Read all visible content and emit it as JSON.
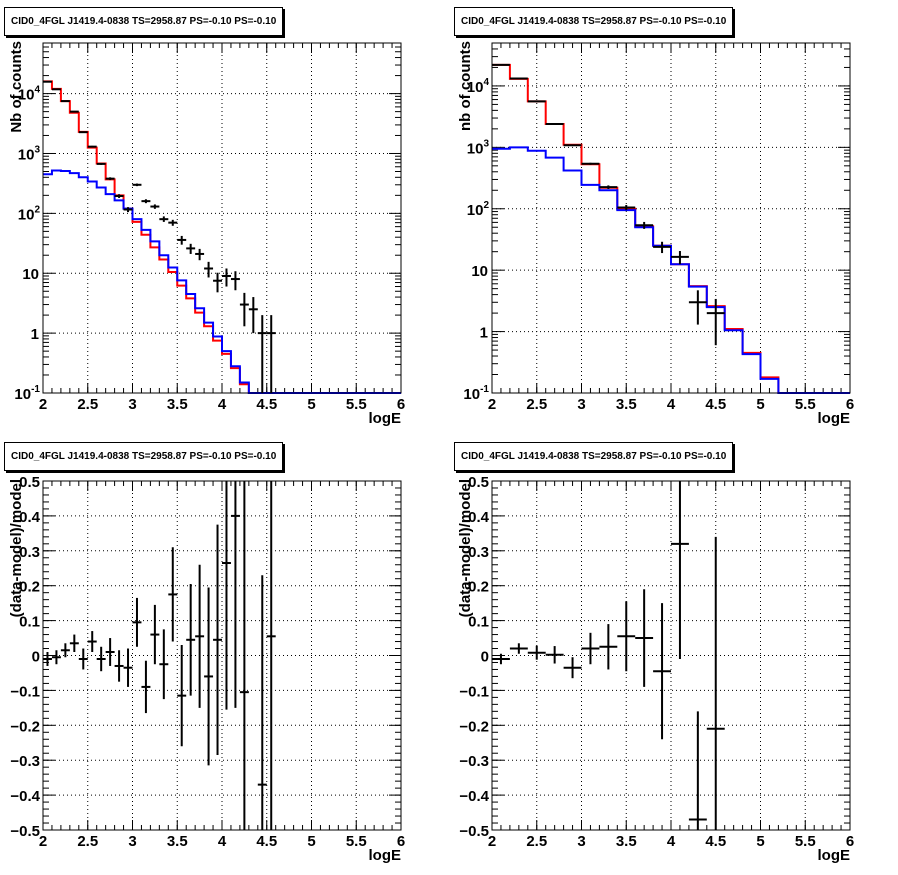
{
  "colors": {
    "data": "#000000",
    "total_model": "#ff0000",
    "source_model": "#0000ff",
    "grid": "#000000"
  },
  "chart_data": [
    {
      "type": "line",
      "title": "CID0_4FGL J1419.4-0838 TS=2958.87 PS=-0.10 PS=-0.10",
      "xlabel": "logE",
      "ylabel": "Nb of counts",
      "xlim": [
        2,
        6
      ],
      "ylim": [
        0.1,
        70000
      ],
      "yscale": "log",
      "grid": true,
      "x_ticks": [
        "2",
        "2.5",
        "3",
        "3.5",
        "4",
        "4.5",
        "5",
        "5.5",
        "6"
      ],
      "y_ticks": [
        "10^-1",
        "1",
        "10",
        "10^2",
        "10^3",
        "10^4"
      ],
      "bin_width": 0.1,
      "series": [
        {
          "values": [
            16000,
            12000,
            7500,
            4800,
            2300,
            1250,
            680,
            370,
            200,
            120,
            72,
            44,
            27,
            17,
            10.5,
            6.2,
            3.8,
            2.2,
            1.3,
            0.75,
            0.45,
            0.26,
            0.14,
            0.1,
            0.1,
            0.1,
            0.1,
            0.1,
            0.1,
            0.1,
            0.1,
            0.1,
            0.1,
            0.1,
            0.1,
            0.1,
            0.1,
            0.1,
            0.1,
            0.1
          ]
        },
        {
          "values": [
            450,
            520,
            510,
            470,
            400,
            340,
            270,
            210,
            165,
            120,
            80,
            53,
            34,
            20,
            12.5,
            7.6,
            4.5,
            2.6,
            1.5,
            0.88,
            0.5,
            0.28,
            0.15,
            0.1,
            0.1,
            0.1,
            0.1,
            0.1,
            0.1,
            0.1,
            0.1,
            0.1,
            0.1,
            0.1,
            0.1,
            0.1,
            0.1,
            0.1,
            0.1,
            0.1
          ],
          "x_start": 2.0,
          "x_end": 6.0
        },
        {
          "points": [
            {
              "x": 2.05,
              "y": 15800,
              "err_low": 15600,
              "err_high": 16000
            },
            {
              "x": 2.15,
              "y": 11800,
              "err_low": 11600,
              "err_high": 12000
            },
            {
              "x": 2.25,
              "y": 7500,
              "err_low": 7350,
              "err_high": 7650
            },
            {
              "x": 2.35,
              "y": 5000,
              "err_low": 4880,
              "err_high": 5120
            },
            {
              "x": 2.45,
              "y": 2270,
              "err_low": 2220,
              "err_high": 2320
            },
            {
              "x": 2.55,
              "y": 1300,
              "err_low": 1260,
              "err_high": 1340
            },
            {
              "x": 2.65,
              "y": 670,
              "err_low": 645,
              "err_high": 695
            },
            {
              "x": 2.75,
              "y": 380,
              "err_low": 360,
              "err_high": 400
            },
            {
              "x": 2.85,
              "y": 195,
              "err_low": 181,
              "err_high": 209
            },
            {
              "x": 2.95,
              "y": 116,
              "err_low": 105,
              "err_high": 127
            },
            {
              "x": 3.05,
              "y": 300,
              "err_low": 285,
              "err_high": 315
            },
            {
              "x": 3.15,
              "y": 160,
              "err_low": 148,
              "err_high": 172
            },
            {
              "x": 3.25,
              "y": 130,
              "err_low": 119,
              "err_high": 141
            },
            {
              "x": 3.35,
              "y": 80,
              "err_low": 72,
              "err_high": 89
            },
            {
              "x": 3.45,
              "y": 70,
              "err_low": 62,
              "err_high": 78
            },
            {
              "x": 3.55,
              "y": 36,
              "err_low": 30,
              "err_high": 42
            },
            {
              "x": 3.65,
              "y": 26,
              "err_low": 21,
              "err_high": 31
            },
            {
              "x": 3.75,
              "y": 21,
              "err_low": 16.5,
              "err_high": 25.5
            },
            {
              "x": 3.85,
              "y": 12,
              "err_low": 8.5,
              "err_high": 15.5
            },
            {
              "x": 3.95,
              "y": 7.5,
              "err_low": 4.8,
              "err_high": 10.2
            },
            {
              "x": 4.05,
              "y": 9,
              "err_low": 6,
              "err_high": 12
            },
            {
              "x": 4.15,
              "y": 8,
              "err_low": 5.2,
              "err_high": 10.8
            },
            {
              "x": 4.25,
              "y": 3,
              "err_low": 1.3,
              "err_high": 4.7
            },
            {
              "x": 4.35,
              "y": 2.5,
              "err_low": 1,
              "err_high": 4
            },
            {
              "x": 4.45,
              "y": 1,
              "err_low": 0.1,
              "err_high": 2
            },
            {
              "x": 4.55,
              "y": 1,
              "err_low": 0.1,
              "err_high": 2
            }
          ]
        }
      ]
    },
    {
      "type": "line",
      "title": "CID0_4FGL J1419.4-0838 TS=2958.87 PS=-0.10 PS=-0.10",
      "xlabel": "logE",
      "ylabel": "nb of counts",
      "xlim": [
        2,
        6
      ],
      "ylim": [
        0.1,
        50000
      ],
      "yscale": "log",
      "grid": true,
      "x_ticks": [
        "2",
        "2.5",
        "3",
        "3.5",
        "4",
        "4.5",
        "5",
        "5.5",
        "6"
      ],
      "y_ticks": [
        "10^-1",
        "1",
        "10",
        "10^2",
        "10^3",
        "10^4"
      ],
      "bin_width": 0.2,
      "series": [
        {
          "values": [
            22000,
            13000,
            5600,
            2400,
            1100,
            530,
            220,
            100,
            52,
            25,
            12.5,
            5.5,
            2.6,
            1.1,
            0.45,
            0.18,
            0.1,
            0.1,
            0.1,
            0.1
          ]
        },
        {
          "values": [
            950,
            1000,
            880,
            680,
            420,
            245,
            200,
            95,
            50,
            25,
            12.5,
            5.4,
            2.5,
            1.05,
            0.43,
            0.17,
            0.1,
            0.1,
            0.1,
            0.1
          ]
        },
        {
          "points": [
            {
              "x": 2.1,
              "y": 22000,
              "err_low": 21800,
              "err_high": 22200
            },
            {
              "x": 2.3,
              "y": 13200,
              "err_low": 13000,
              "err_high": 13400
            },
            {
              "x": 2.5,
              "y": 5600,
              "err_low": 5500,
              "err_high": 5700
            },
            {
              "x": 2.7,
              "y": 2400,
              "err_low": 2350,
              "err_high": 2450
            },
            {
              "x": 2.9,
              "y": 1080,
              "err_low": 1050,
              "err_high": 1110
            },
            {
              "x": 3.1,
              "y": 540,
              "err_low": 520,
              "err_high": 560
            },
            {
              "x": 3.3,
              "y": 225,
              "err_low": 210,
              "err_high": 240
            },
            {
              "x": 3.5,
              "y": 105,
              "err_low": 95,
              "err_high": 115
            },
            {
              "x": 3.7,
              "y": 54,
              "err_low": 47,
              "err_high": 61
            },
            {
              "x": 3.9,
              "y": 24,
              "err_low": 19,
              "err_high": 29
            },
            {
              "x": 4.1,
              "y": 16.5,
              "err_low": 12.5,
              "err_high": 20.5
            },
            {
              "x": 4.3,
              "y": 3,
              "err_low": 1.3,
              "err_high": 4.7
            },
            {
              "x": 4.5,
              "y": 2,
              "err_low": 0.6,
              "err_high": 3.4
            }
          ]
        }
      ]
    },
    {
      "type": "scatter",
      "title": "CID0_4FGL J1419.4-0838 TS=2958.87 PS=-0.10 PS=-0.10",
      "xlabel": "logE",
      "ylabel": "(data-model)/model",
      "xlim": [
        2,
        6
      ],
      "ylim": [
        -0.5,
        0.5
      ],
      "grid": true,
      "x_ticks": [
        "2",
        "2.5",
        "3",
        "3.5",
        "4",
        "4.5",
        "5",
        "5.5",
        "6"
      ],
      "y_ticks": [
        "−0.5",
        "−0.4",
        "−0.3",
        "−0.2",
        "−0.1",
        "0",
        "0.1",
        "0.2",
        "0.3",
        "0.4",
        "0.5"
      ],
      "bin_width": 0.1,
      "points": [
        {
          "x": 2.05,
          "y": -0.01,
          "err": 0.02
        },
        {
          "x": 2.15,
          "y": -0.005,
          "err": 0.02
        },
        {
          "x": 2.25,
          "y": 0.015,
          "err": 0.02
        },
        {
          "x": 2.35,
          "y": 0.035,
          "err": 0.025
        },
        {
          "x": 2.45,
          "y": -0.01,
          "err": 0.03
        },
        {
          "x": 2.55,
          "y": 0.04,
          "err": 0.03
        },
        {
          "x": 2.65,
          "y": -0.01,
          "err": 0.035
        },
        {
          "x": 2.75,
          "y": 0.01,
          "err": 0.04
        },
        {
          "x": 2.85,
          "y": -0.03,
          "err": 0.045
        },
        {
          "x": 2.95,
          "y": -0.035,
          "err": 0.055
        },
        {
          "x": 3.05,
          "y": 0.095,
          "err": 0.07
        },
        {
          "x": 3.15,
          "y": -0.09,
          "err": 0.075
        },
        {
          "x": 3.25,
          "y": 0.06,
          "err": 0.085
        },
        {
          "x": 3.35,
          "y": -0.025,
          "err": 0.1
        },
        {
          "x": 3.45,
          "y": 0.175,
          "err": 0.135
        },
        {
          "x": 3.55,
          "y": -0.115,
          "err": 0.145
        },
        {
          "x": 3.65,
          "y": 0.045,
          "err": 0.16
        },
        {
          "x": 3.75,
          "y": 0.055,
          "err": 0.205
        },
        {
          "x": 3.85,
          "y": -0.06,
          "err": 0.255
        },
        {
          "x": 3.95,
          "y": 0.045,
          "err": 0.33
        },
        {
          "x": 4.05,
          "y": 0.265,
          "err": 0.42
        },
        {
          "x": 4.15,
          "y": 0.4,
          "err": 0.55
        },
        {
          "x": 4.25,
          "y": -0.105,
          "err": 0.7
        },
        {
          "x": 4.45,
          "y": -0.37,
          "err": 0.6
        },
        {
          "x": 4.55,
          "y": 0.055,
          "err": 0.85
        }
      ]
    },
    {
      "type": "scatter",
      "title": "CID0_4FGL J1419.4-0838 TS=2958.87 PS=-0.10 PS=-0.10",
      "xlabel": "logE",
      "ylabel": "(data-model)/model",
      "xlim": [
        2,
        6
      ],
      "ylim": [
        -0.5,
        0.5
      ],
      "grid": true,
      "x_ticks": [
        "2",
        "2.5",
        "3",
        "3.5",
        "4",
        "4.5",
        "5",
        "5.5",
        "6"
      ],
      "y_ticks": [
        "−0.5",
        "−0.4",
        "−0.3",
        "−0.2",
        "−0.1",
        "0",
        "0.1",
        "0.2",
        "0.3",
        "0.4",
        "0.5"
      ],
      "bin_width": 0.2,
      "points": [
        {
          "x": 2.1,
          "y": -0.01,
          "err": 0.015
        },
        {
          "x": 2.3,
          "y": 0.02,
          "err": 0.015
        },
        {
          "x": 2.5,
          "y": 0.008,
          "err": 0.02
        },
        {
          "x": 2.7,
          "y": 0.002,
          "err": 0.025
        },
        {
          "x": 2.9,
          "y": -0.035,
          "err": 0.03
        },
        {
          "x": 3.1,
          "y": 0.02,
          "err": 0.045
        },
        {
          "x": 3.3,
          "y": 0.025,
          "err": 0.065
        },
        {
          "x": 3.5,
          "y": 0.055,
          "err": 0.1
        },
        {
          "x": 3.7,
          "y": 0.05,
          "err": 0.14
        },
        {
          "x": 3.9,
          "y": -0.045,
          "err": 0.195
        },
        {
          "x": 4.1,
          "y": 0.32,
          "err": 0.33
        },
        {
          "x": 4.3,
          "y": -0.47,
          "err": 0.31
        },
        {
          "x": 4.5,
          "y": -0.21,
          "err": 0.55
        }
      ]
    }
  ]
}
